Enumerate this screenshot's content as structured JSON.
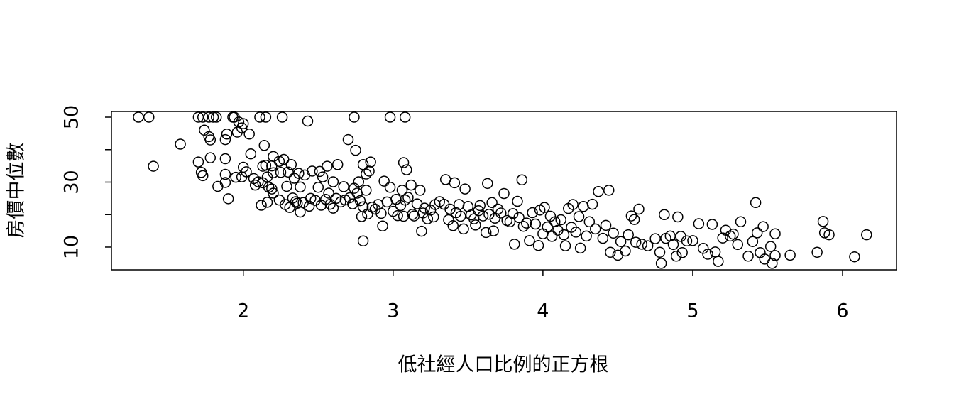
{
  "chart_data": {
    "type": "scatter",
    "x_label": "低社經人口比例的正方根",
    "y_label": "房價中位數",
    "xlim": [
      1.12,
      6.36
    ],
    "ylim": [
      3.0,
      51.75
    ],
    "xticks": [
      2,
      3,
      4,
      5,
      6
    ],
    "yticks": [
      10,
      20,
      30,
      40,
      50
    ],
    "color": "#000000",
    "x": [
      1.3,
      1.37,
      1.7,
      1.73,
      1.77,
      1.8,
      1.82,
      1.93,
      1.94,
      2.11,
      2.15,
      2.26,
      2.74,
      2.98,
      3.08,
      1.4,
      1.58,
      1.7,
      1.72,
      1.73,
      1.74,
      1.77,
      1.78,
      1.78,
      1.83,
      1.88,
      1.89,
      1.88,
      1.88,
      1.88,
      1.9,
      1.95,
      1.96,
      1.97,
      1.99,
      2.0,
      1.99,
      2.0,
      2.02,
      2.04,
      2.05,
      2.07,
      2.08,
      2.1,
      2.12,
      2.13,
      2.13,
      2.14,
      2.15,
      2.16,
      2.16,
      2.17,
      2.19,
      2.2,
      2.2,
      2.19,
      2.2,
      2.24,
      2.24,
      2.25,
      2.27,
      2.29,
      2.28,
      2.3,
      2.31,
      2.32,
      2.33,
      2.34,
      2.35,
      2.36,
      2.37,
      2.38,
      2.38,
      2.4,
      2.41,
      2.43,
      2.44,
      2.45,
      2.46,
      2.48,
      2.5,
      2.51,
      2.52,
      2.53,
      2.55,
      2.56,
      2.57,
      2.58,
      2.6,
      2.6,
      2.62,
      2.63,
      2.65,
      2.67,
      2.68,
      2.7,
      2.71,
      2.73,
      2.74,
      2.75,
      2.76,
      2.77,
      2.78,
      2.79,
      2.8,
      2.8,
      2.8,
      2.82,
      2.82,
      2.83,
      2.84,
      2.85,
      2.86,
      2.88,
      2.9,
      2.92,
      2.93,
      2.94,
      2.96,
      2.98,
      3.0,
      3.02,
      3.03,
      3.05,
      3.06,
      3.07,
      3.07,
      3.08,
      3.09,
      3.1,
      3.12,
      3.13,
      3.14,
      3.16,
      3.18,
      3.19,
      3.2,
      3.21,
      3.23,
      3.25,
      3.27,
      3.28,
      3.31,
      3.34,
      3.35,
      3.37,
      3.38,
      3.4,
      3.41,
      3.42,
      3.44,
      3.45,
      3.47,
      3.48,
      3.5,
      3.52,
      3.54,
      3.55,
      3.57,
      3.58,
      3.6,
      3.62,
      3.63,
      3.64,
      3.66,
      3.67,
      3.68,
      3.7,
      3.72,
      3.74,
      3.76,
      3.78,
      3.8,
      3.81,
      3.83,
      3.84,
      3.86,
      3.87,
      3.89,
      3.91,
      3.93,
      3.95,
      3.97,
      3.98,
      4.0,
      4.01,
      4.03,
      4.05,
      4.06,
      4.08,
      4.1,
      4.12,
      4.14,
      4.15,
      4.17,
      4.19,
      4.2,
      4.22,
      4.24,
      4.25,
      4.27,
      4.29,
      4.31,
      4.33,
      4.35,
      4.37,
      4.4,
      4.42,
      4.44,
      4.45,
      4.47,
      4.5,
      4.52,
      4.55,
      4.57,
      4.59,
      4.61,
      4.62,
      4.64,
      4.66,
      4.7,
      4.75,
      4.78,
      4.79,
      4.81,
      4.82,
      4.85,
      4.87,
      4.89,
      4.9,
      4.92,
      4.93,
      4.96,
      5.0,
      5.04,
      5.07,
      5.1,
      5.13,
      5.15,
      5.17,
      5.2,
      5.22,
      5.25,
      5.27,
      5.3,
      5.32,
      5.37,
      5.4,
      5.42,
      5.43,
      5.45,
      5.47,
      5.48,
      5.52,
      5.53,
      5.55,
      5.55,
      5.65,
      5.83,
      5.87,
      5.88,
      5.91,
      6.08,
      6.16
    ],
    "values": [
      50,
      50,
      50,
      50,
      50,
      50,
      50,
      50,
      50,
      50,
      50,
      50,
      50,
      50,
      50,
      34.9,
      41.7,
      36.2,
      33,
      32,
      46,
      44,
      43,
      37.5,
      28.7,
      43.1,
      44.8,
      37.2,
      32.4,
      29.9,
      24.9,
      31.5,
      45.4,
      48.5,
      46.7,
      48,
      31.6,
      34.6,
      33.2,
      44.8,
      38.7,
      31.1,
      29.1,
      30.1,
      22.9,
      34.9,
      29.8,
      41.3,
      35.2,
      31.6,
      23.8,
      28.4,
      27.9,
      26.6,
      32.9,
      35,
      37.9,
      36.4,
      24.5,
      33,
      37,
      28.7,
      23.1,
      33.1,
      22.2,
      35.4,
      25.1,
      31.2,
      24,
      23.5,
      32.7,
      20.8,
      28.5,
      23.7,
      32.2,
      48.8,
      22.6,
      25,
      33.4,
      24.4,
      28.4,
      33.3,
      22.9,
      31.6,
      24.7,
      34.9,
      26.6,
      23.2,
      22,
      30.1,
      25,
      35.4,
      23.9,
      28.6,
      24.5,
      43.1,
      25.2,
      23.3,
      28.1,
      39.8,
      26.6,
      30.1,
      24.3,
      19.4,
      35.4,
      22.4,
      11.9,
      32.5,
      27.5,
      20.2,
      33.4,
      36.2,
      22.3,
      21.7,
      23.1,
      20.4,
      16.5,
      30.3,
      23.9,
      28.4,
      21,
      24.7,
      19.7,
      22.8,
      27.5,
      36,
      19.5,
      24.5,
      33.8,
      25.3,
      29.1,
      20.1,
      19.6,
      23.3,
      27.5,
      14.9,
      20.5,
      22,
      18.7,
      21.4,
      19.3,
      23.1,
      24,
      23.2,
      30.8,
      18.4,
      21.7,
      16.6,
      29.8,
      20.6,
      23.1,
      19.5,
      15.6,
      27.9,
      22.5,
      19.9,
      18.7,
      16.8,
      21.2,
      22.8,
      19.6,
      14.5,
      29.6,
      20.1,
      23.7,
      15,
      18.9,
      21.7,
      20.5,
      26.5,
      18.2,
      17.8,
      20.3,
      10.9,
      24.1,
      19.1,
      30.7,
      16.4,
      17.4,
      12,
      20.6,
      17.1,
      10.5,
      21.4,
      14.1,
      22.2,
      16.2,
      19.5,
      13.3,
      17.8,
      15.2,
      18.4,
      13.8,
      10.4,
      21.9,
      16.1,
      23.1,
      14.6,
      19.4,
      9.7,
      22.5,
      13.4,
      17.8,
      23.2,
      15.6,
      27.1,
      12.7,
      16.7,
      27.5,
      8.4,
      14.3,
      7.5,
      11.7,
      8.8,
      13.8,
      19.6,
      18.5,
      11.5,
      21.7,
      10.9,
      10.4,
      12.6,
      8.4,
      5,
      20,
      12.7,
      13.4,
      10.8,
      7.2,
      19.3,
      13.3,
      8.3,
      11.9,
      12,
      17.2,
      9.6,
      7.8,
      17,
      8.5,
      5.6,
      12.8,
      15.2,
      13.4,
      14,
      10.8,
      17.8,
      7.2,
      11.7,
      23.7,
      14.4,
      8.3,
      16.3,
      6.3,
      10.2,
      5,
      14.1,
      7.4,
      7.5,
      8.4,
      17.9,
      14.4,
      13.8,
      7,
      13.8
    ]
  }
}
